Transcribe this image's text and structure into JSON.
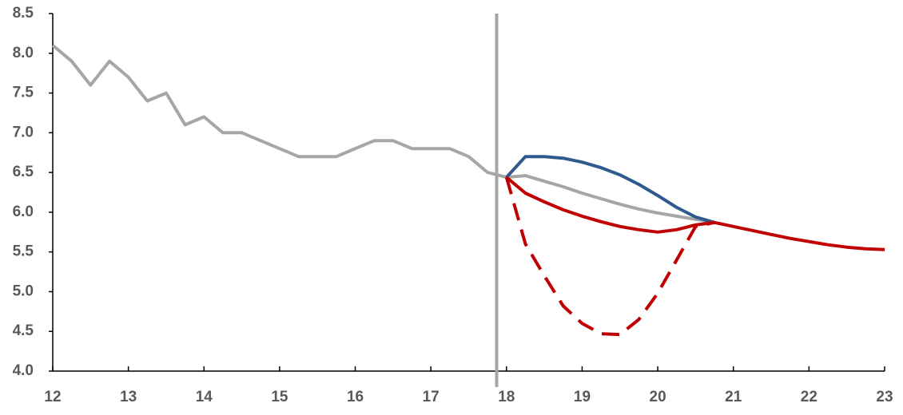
{
  "chart_data": {
    "type": "line",
    "xlim": [
      12,
      23
    ],
    "xticks": [
      12,
      13,
      14,
      15,
      16,
      17,
      18,
      19,
      20,
      21,
      22,
      23
    ],
    "ylim": [
      4,
      8.5
    ],
    "yticks": [
      {
        "value": 4,
        "label": "4.0"
      },
      4.5,
      {
        "value": 5,
        "label": "5.0"
      },
      5.5,
      {
        "value": 6,
        "label": "6.0"
      },
      6.5,
      {
        "value": 7,
        "label": "7.0"
      },
      7.5,
      {
        "value": 8,
        "label": "8.0"
      },
      8.5
    ],
    "grid": false,
    "vline": {
      "x": 17.87,
      "color": "#a6a6a6"
    },
    "series": [
      {
        "color": "#a6a6a6",
        "dashed": false,
        "x": [
          12,
          12.25,
          12.5,
          12.75,
          13,
          13.25,
          13.5,
          13.75,
          14,
          14.25,
          14.5,
          14.75,
          15,
          15.25,
          15.5,
          15.75,
          16,
          16.25,
          16.5,
          16.75,
          17,
          17.25,
          17.5,
          17.75,
          18,
          18.25,
          18.5,
          18.75,
          19,
          19.25,
          19.5,
          19.75,
          20,
          20.25,
          20.5,
          20.75
        ],
        "values": [
          8.1,
          7.9,
          7.6,
          7.9,
          7.7,
          7.4,
          7.5,
          7.1,
          7.2,
          7.0,
          7.0,
          6.9,
          6.8,
          6.7,
          6.7,
          6.7,
          6.8,
          6.9,
          6.9,
          6.8,
          6.8,
          6.8,
          6.7,
          6.5,
          6.44,
          6.46,
          6.39,
          6.32,
          6.24,
          6.17,
          6.1,
          6.04,
          5.99,
          5.95,
          5.91,
          5.87
        ]
      },
      {
        "color": "#2e5a8e",
        "dashed": false,
        "x": [
          18,
          18.25,
          18.5,
          18.75,
          19,
          19.25,
          19.5,
          19.75,
          20,
          20.25,
          20.5,
          20.75
        ],
        "values": [
          6.44,
          6.7,
          6.7,
          6.68,
          6.63,
          6.56,
          6.47,
          6.35,
          6.21,
          6.06,
          5.94,
          5.87
        ]
      },
      {
        "color": "#c00000",
        "dashed": true,
        "x": [
          18,
          18.25,
          18.5,
          18.75,
          19,
          19.25,
          19.5,
          19.75,
          20,
          20.25,
          20.5,
          20.75
        ],
        "values": [
          6.44,
          5.6,
          5.2,
          4.82,
          4.6,
          4.47,
          4.46,
          4.65,
          4.98,
          5.4,
          5.82,
          5.87
        ]
      },
      {
        "color": "#c00000",
        "dashed": false,
        "x": [
          18,
          18.25,
          18.5,
          18.75,
          19,
          19.25,
          19.5,
          19.75,
          20,
          20.25,
          20.5,
          20.75,
          21,
          21.25,
          21.5,
          21.75,
          22,
          22.25,
          22.5,
          22.75,
          23
        ],
        "values": [
          6.44,
          6.24,
          6.13,
          6.03,
          5.95,
          5.88,
          5.82,
          5.78,
          5.75,
          5.78,
          5.84,
          5.87,
          5.82,
          5.77,
          5.72,
          5.67,
          5.63,
          5.59,
          5.56,
          5.54,
          5.53
        ]
      }
    ]
  }
}
